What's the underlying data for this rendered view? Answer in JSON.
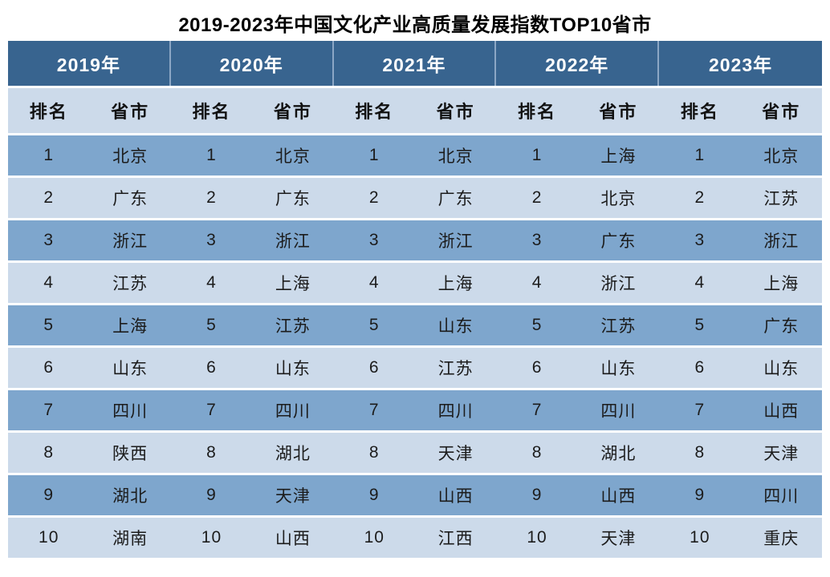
{
  "title": "2019-2023年中国文化产业高质量发展指数TOP10省市",
  "chart_data": {
    "type": "table",
    "title": "2019-2023年中国文化产业高质量发展指数TOP10省市",
    "sub_columns": {
      "rank": "排名",
      "province": "省市"
    },
    "ranks": [
      1,
      2,
      3,
      4,
      5,
      6,
      7,
      8,
      9,
      10
    ],
    "years": [
      {
        "label": "2019年",
        "provinces": [
          "北京",
          "广东",
          "浙江",
          "江苏",
          "上海",
          "山东",
          "四川",
          "陕西",
          "湖北",
          "湖南"
        ]
      },
      {
        "label": "2020年",
        "provinces": [
          "北京",
          "广东",
          "浙江",
          "上海",
          "江苏",
          "山东",
          "四川",
          "湖北",
          "天津",
          "山西"
        ]
      },
      {
        "label": "2021年",
        "provinces": [
          "北京",
          "广东",
          "浙江",
          "上海",
          "山东",
          "江苏",
          "四川",
          "天津",
          "山西",
          "江西"
        ]
      },
      {
        "label": "2022年",
        "provinces": [
          "上海",
          "北京",
          "广东",
          "浙江",
          "江苏",
          "山东",
          "四川",
          "湖北",
          "山西",
          "天津"
        ]
      },
      {
        "label": "2023年",
        "provinces": [
          "北京",
          "江苏",
          "浙江",
          "上海",
          "广东",
          "山东",
          "山西",
          "天津",
          "四川",
          "重庆"
        ]
      }
    ]
  },
  "colors": {
    "header_bg": "#38648F",
    "header_text": "#FFFFFF",
    "header_divider": "#8CA7C5",
    "subheader_bg": "#CCDAEA",
    "row_odd_bg": "#7EA6CD",
    "row_even_bg": "#CCDAEA",
    "body_text": "#1C1C1C",
    "page_bg": "#FFFFFF"
  }
}
